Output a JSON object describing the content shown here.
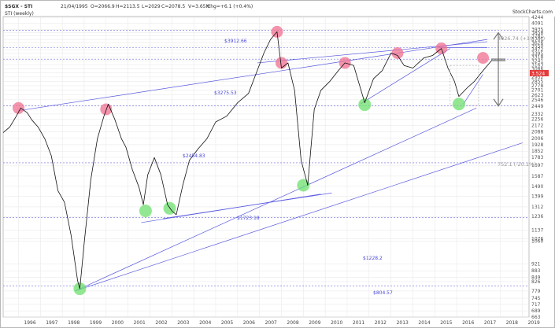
{
  "header": {
    "symbol": "$SGX - STI",
    "date": "21/04/1995",
    "open": "O=2066.9",
    "high": "H=2113.5",
    "low": "L=2029",
    "close": "C=2078.5",
    "volume": "V=3.65M",
    "change": "Chg=+6.1 (+0.4%)",
    "watermark": "StockCharts.com"
  },
  "legend": {
    "series_label": "STI (weekly)"
  },
  "chart_data": {
    "type": "line",
    "title": "$SGX - STI",
    "x_range": [
      1995.3,
      2019.3
    ],
    "ylim": [
      663,
      4244
    ],
    "yscale": "log",
    "y_ticks": [
      663,
      689,
      717,
      745,
      779,
      826,
      849,
      883,
      921,
      1060,
      1076,
      1137,
      1236,
      1312,
      1399,
      1490,
      1587,
      1697,
      1783,
      1852,
      1928,
      2006,
      2088,
      2172,
      2256,
      2332,
      2449,
      2546,
      2623,
      2701,
      2778,
      2855,
      2932,
      3009,
      3086,
      3163,
      3241,
      3318,
      3395,
      3472,
      3550,
      3626,
      3701,
      3781,
      3858,
      3935,
      4091,
      4244
    ],
    "x_ticks": [
      "1996",
      "1997",
      "1998",
      "1999",
      "2000",
      "2001",
      "2002",
      "2003",
      "2004",
      "2005",
      "2006",
      "2007",
      "2008",
      "2009",
      "2010",
      "2011",
      "2012",
      "2013",
      "2014",
      "2015",
      "2016",
      "2017",
      "2018",
      "2019"
    ],
    "series": [
      {
        "name": "STI (weekly)",
        "x": [
          1995.3,
          1995.6,
          1995.9,
          1996.1,
          1996.4,
          1996.6,
          1996.9,
          1997.2,
          1997.5,
          1997.8,
          1998.1,
          1998.4,
          1998.7,
          1998.8,
          1999.0,
          1999.3,
          1999.6,
          1999.9,
          2000.1,
          2000.4,
          2000.7,
          2000.9,
          2001.2,
          2001.5,
          2001.7,
          2001.9,
          2002.2,
          2002.5,
          2002.8,
          2003.0,
          2003.2,
          2003.5,
          2003.8,
          2004.2,
          2004.6,
          2005.0,
          2005.5,
          2006.0,
          2006.5,
          2006.8,
          2007.2,
          2007.5,
          2007.8,
          2008.0,
          2008.3,
          2008.6,
          2008.9,
          2009.2,
          2009.5,
          2009.8,
          2010.2,
          2010.6,
          2010.9,
          2011.3,
          2011.8,
          2012.2,
          2012.6,
          2013.0,
          2013.3,
          2013.6,
          2014.0,
          2014.5,
          2014.9,
          2015.3,
          2015.6,
          2015.9,
          2016.1,
          2016.5,
          2016.8,
          2017.0,
          2017.3,
          2017.6
        ],
        "y": [
          2078,
          2150,
          2300,
          2420,
          2350,
          2250,
          2150,
          2000,
          1800,
          1450,
          1350,
          1100,
          830,
          790,
          1050,
          1550,
          2000,
          2300,
          2480,
          2250,
          2000,
          1900,
          1650,
          1480,
          1330,
          1600,
          1780,
          1600,
          1330,
          1280,
          1250,
          1500,
          1750,
          1880,
          2000,
          2220,
          2300,
          2500,
          2650,
          2950,
          3400,
          3700,
          3880,
          3100,
          3200,
          2700,
          1750,
          1500,
          2400,
          2700,
          2850,
          3050,
          3200,
          3150,
          2500,
          2900,
          3050,
          3400,
          3350,
          3150,
          3100,
          3300,
          3350,
          3500,
          3100,
          2850,
          2600,
          2750,
          2850,
          2950,
          3100,
          3250
        ]
      }
    ],
    "level_labels": [
      "$3912.66",
      "$3275.53",
      "$2454.83",
      "$1723.18",
      "$1228.2",
      "$804.57"
    ],
    "target_labels": [
      "4026.74 (+19.1%)",
      "752.1 (-20.1%)"
    ],
    "last_value": "3.524"
  }
}
